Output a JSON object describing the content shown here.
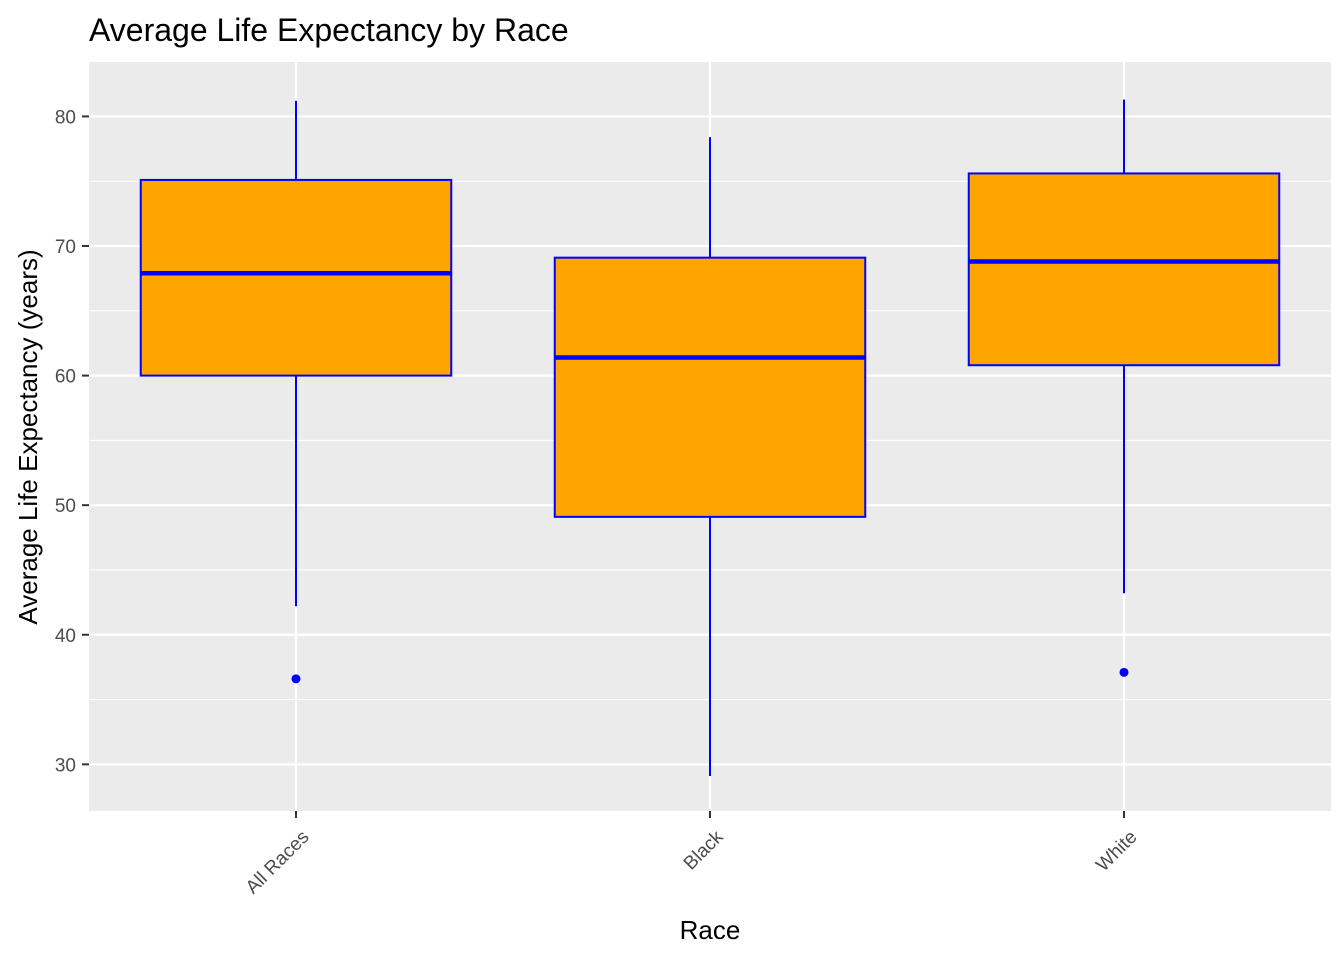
{
  "chart_data": {
    "type": "boxplot",
    "title": "Average Life Expectancy by Race",
    "xlabel": "Race",
    "ylabel": "Average Life Expectancy (years)",
    "ylim": [
      26.4,
      84.2
    ],
    "yticks": [
      30,
      40,
      50,
      60,
      70,
      80
    ],
    "grid": true,
    "legend": "none",
    "colors": {
      "fill": "#FFA500",
      "outline": "#0000FF",
      "panel": "#EBEBEB",
      "grid": "#FFFFFF",
      "tick_text": "#4D4D4D"
    },
    "categories": [
      "All Races",
      "Black",
      "White"
    ],
    "boxes": [
      {
        "category": "All Races",
        "whisker_low": 42.2,
        "q1": 60.0,
        "median": 67.9,
        "q3": 75.1,
        "whisker_high": 81.2,
        "outliers": [
          36.6
        ]
      },
      {
        "category": "Black",
        "whisker_low": 29.1,
        "q1": 49.1,
        "median": 61.4,
        "q3": 69.1,
        "whisker_high": 78.4,
        "outliers": []
      },
      {
        "category": "White",
        "whisker_low": 43.2,
        "q1": 60.8,
        "median": 68.8,
        "q3": 75.6,
        "whisker_high": 81.3,
        "outliers": [
          37.1
        ]
      }
    ]
  }
}
